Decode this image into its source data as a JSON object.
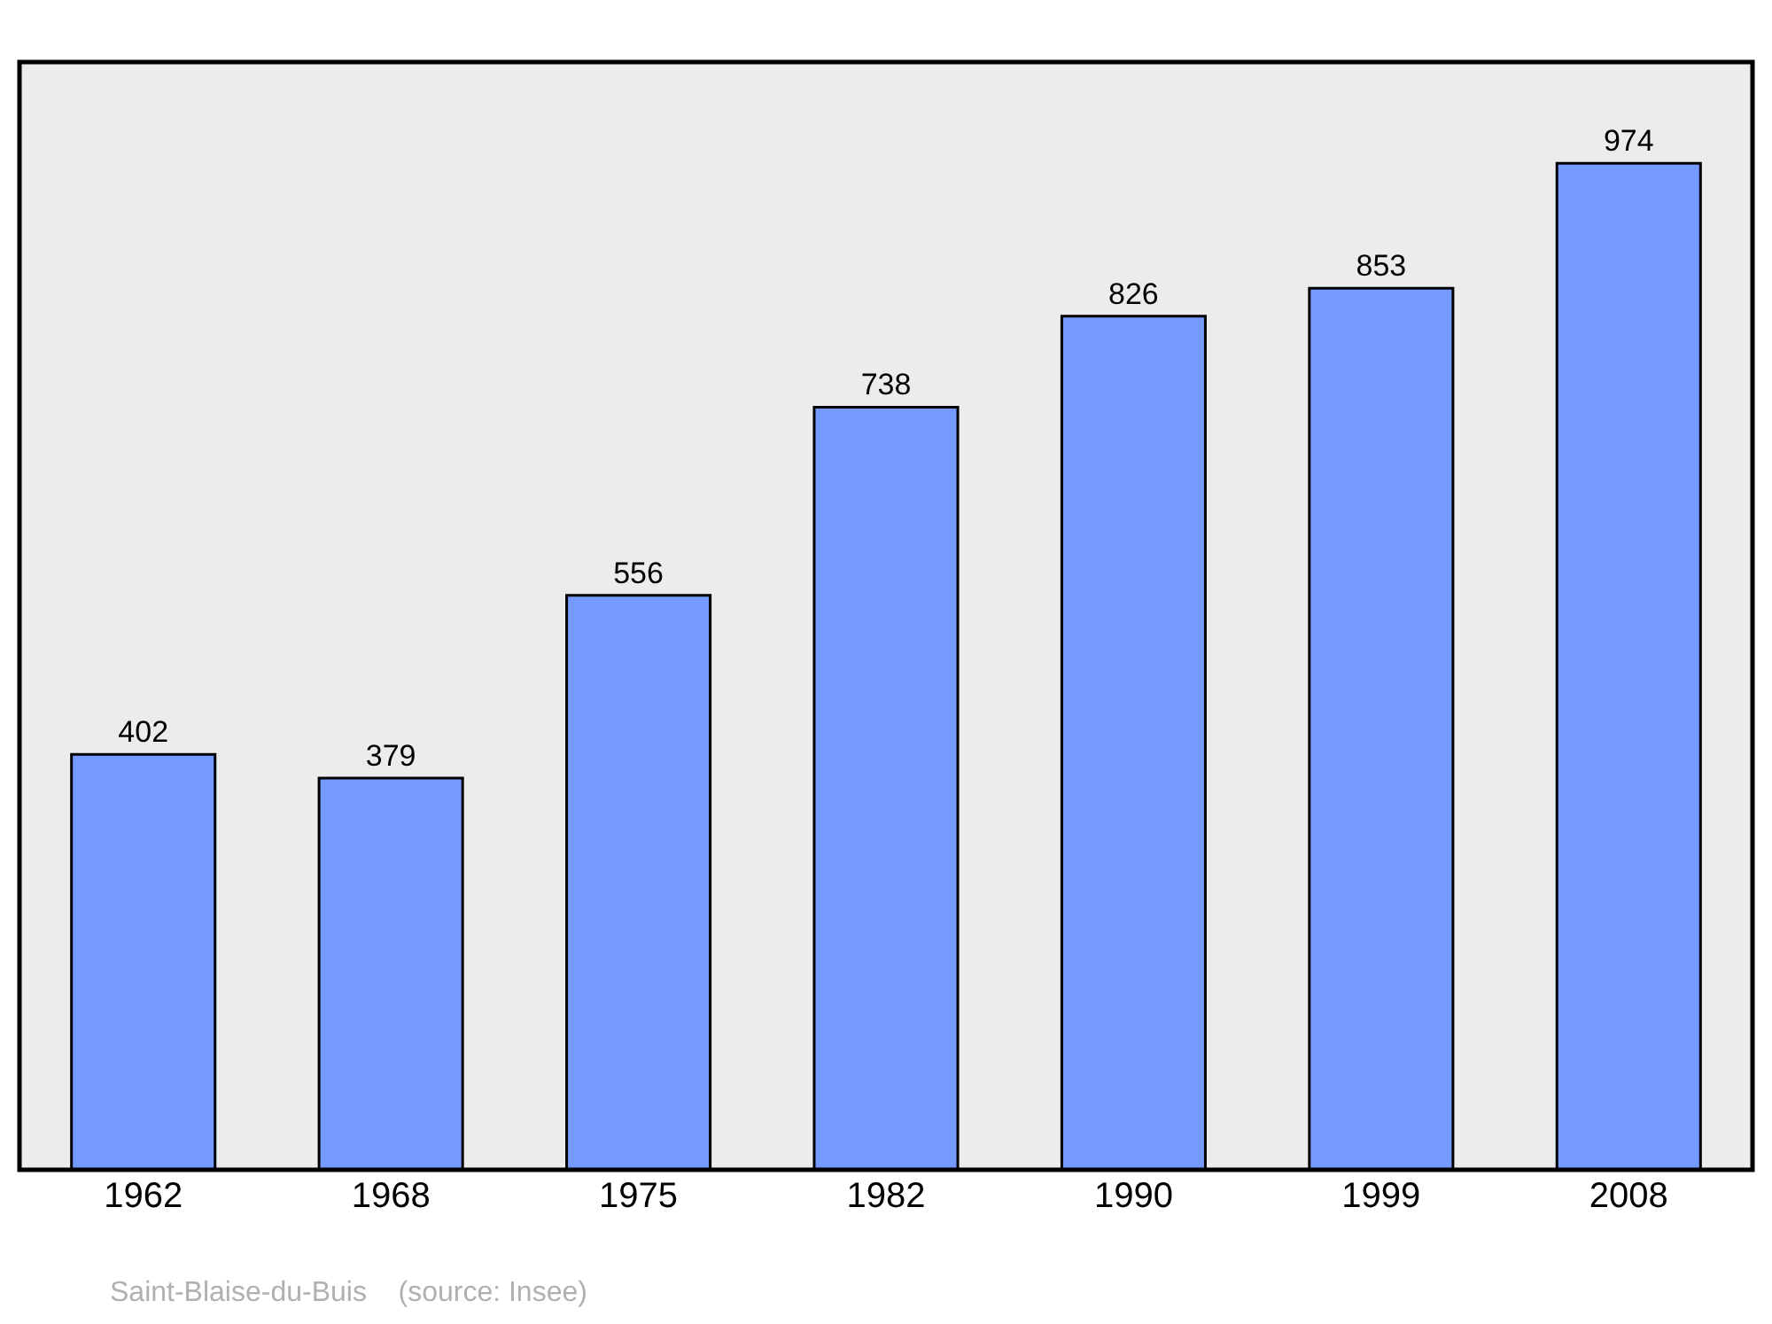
{
  "chart_data": {
    "type": "bar",
    "categories": [
      "1962",
      "1968",
      "1975",
      "1982",
      "1990",
      "1999",
      "2008"
    ],
    "values": [
      402,
      379,
      556,
      738,
      826,
      853,
      974
    ],
    "color": "#7499ff",
    "data_labels": true,
    "ylim": [
      0,
      1072
    ],
    "tick_labels": "x",
    "grid": false,
    "annotations": [
      "Saint-Blaise-du-Buis    (source: Insee)"
    ]
  }
}
